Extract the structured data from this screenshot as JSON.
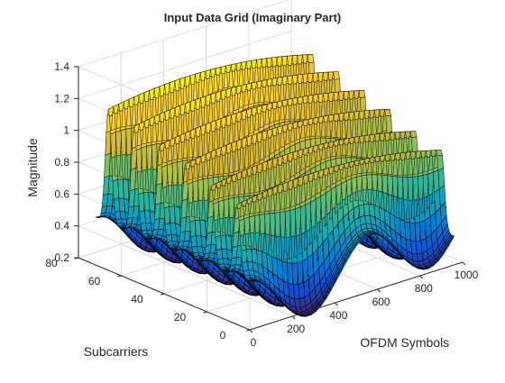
{
  "chart_data": {
    "type": "surface",
    "title": "Input Data Grid (Imaginary Part)",
    "xlabel": "OFDM Symbols",
    "ylabel": "Subcarriers",
    "zlabel": "Magnitude",
    "xlim": [
      0,
      1000
    ],
    "ylim": [
      0,
      80
    ],
    "zlim": [
      0.2,
      1.4
    ],
    "x_ticks": [
      "0",
      "200",
      "400",
      "600",
      "800",
      "1000"
    ],
    "y_ticks": [
      "0",
      "20",
      "40",
      "60",
      "80"
    ],
    "z_ticks": [
      "0.2",
      "0.4",
      "0.6",
      "0.8",
      "1",
      "1.2",
      "1.4"
    ],
    "grid": true,
    "colormap": "parula",
    "x_extent": [
      0,
      960
    ],
    "y_extent": [
      0,
      72
    ],
    "ridge_count": 6,
    "ridge_peak_magnitude": [
      1.0,
      1.05,
      1.12,
      1.17,
      1.22,
      1.26
    ],
    "baseline_magnitude_range": [
      0.2,
      0.6
    ]
  }
}
